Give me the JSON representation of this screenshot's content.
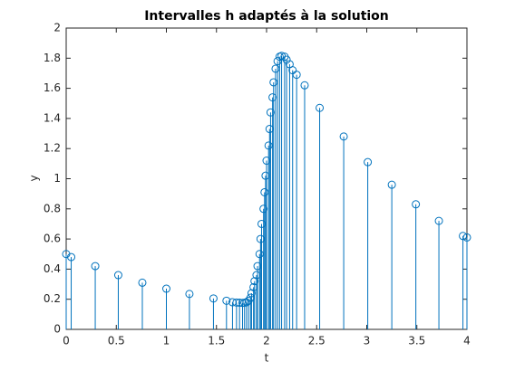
{
  "chart_data": {
    "type": "stem",
    "title": "Intervalles h adaptés à la solution",
    "x_label": "t",
    "y_label": "y",
    "x": [
      0,
      0.05,
      0.29,
      0.52,
      0.76,
      1.0,
      1.23,
      1.47,
      1.6,
      1.66,
      1.7,
      1.73,
      1.76,
      1.78,
      1.8,
      1.82,
      1.84,
      1.85,
      1.87,
      1.88,
      1.9,
      1.91,
      1.93,
      1.94,
      1.95,
      1.97,
      1.98,
      1.99,
      2.0,
      2.02,
      2.03,
      2.04,
      2.06,
      2.07,
      2.09,
      2.11,
      2.13,
      2.15,
      2.18,
      2.2,
      2.23,
      2.26,
      2.3,
      2.38,
      2.53,
      2.77,
      3.01,
      3.25,
      3.49,
      3.72,
      3.96,
      4.0
    ],
    "values": [
      0.5,
      0.48,
      0.42,
      0.36,
      0.31,
      0.27,
      0.235,
      0.205,
      0.19,
      0.18,
      0.178,
      0.177,
      0.176,
      0.177,
      0.18,
      0.19,
      0.21,
      0.24,
      0.28,
      0.32,
      0.36,
      0.42,
      0.5,
      0.6,
      0.7,
      0.8,
      0.91,
      1.02,
      1.12,
      1.22,
      1.33,
      1.44,
      1.54,
      1.64,
      1.73,
      1.78,
      1.81,
      1.815,
      1.81,
      1.79,
      1.76,
      1.72,
      1.69,
      1.62,
      1.47,
      1.28,
      1.11,
      0.96,
      0.83,
      0.72,
      0.62,
      0.61
    ],
    "color": "#0072bd",
    "xlim": [
      0,
      4
    ],
    "xticks": [
      0,
      0.5,
      1,
      1.5,
      2,
      2.5,
      3,
      3.5,
      4
    ],
    "ylim": [
      0,
      2
    ],
    "yticks": [
      0,
      0.2,
      0.4,
      0.6,
      0.8,
      1,
      1.2,
      1.4,
      1.6,
      1.8,
      2
    ]
  }
}
